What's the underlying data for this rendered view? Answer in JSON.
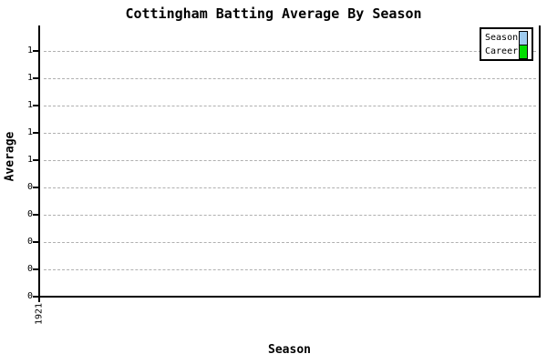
{
  "title": "Cottingham Batting Average By Season",
  "axes": {
    "y_label": "Average",
    "x_label": "Season",
    "y_tick_labels_top_to_bottom": [
      "1",
      "1",
      "1",
      "1",
      "1",
      "0",
      "0",
      "0",
      "0",
      "0"
    ],
    "x_tick_labels": [
      "1921"
    ]
  },
  "legend": {
    "position": "top-right",
    "items": [
      {
        "label": "Season",
        "color": "#9FCBEF"
      },
      {
        "label": "Career",
        "color": "#00DD00"
      }
    ]
  },
  "colors": {
    "background": "#ffffff",
    "axis": "#000000",
    "gridline": "#b0b0b0",
    "season_series": "#9FCBEF",
    "career_series": "#00DD00"
  },
  "chart_data": {
    "type": "bar",
    "title": "Cottingham Batting Average By Season",
    "xlabel": "Season",
    "ylabel": "Average",
    "categories": [
      "1921"
    ],
    "series": [
      {
        "name": "Season",
        "color": "#9FCBEF",
        "values": [
          0
        ]
      },
      {
        "name": "Career",
        "color": "#00DD00",
        "values": [
          0
        ]
      }
    ],
    "ylim": [
      0,
      1
    ],
    "y_ticks": [
      0,
      0.1,
      0.2,
      0.3,
      0.4,
      0.5,
      0.6,
      0.7,
      0.8,
      0.9
    ],
    "y_tick_labels_displayed_bottom_to_top": [
      "0",
      "0",
      "0",
      "0",
      "0",
      "1",
      "1",
      "1",
      "1",
      "1"
    ],
    "grid": "horizontal-dashed",
    "legend_position": "top-right",
    "notes_visible_bars": "none"
  }
}
